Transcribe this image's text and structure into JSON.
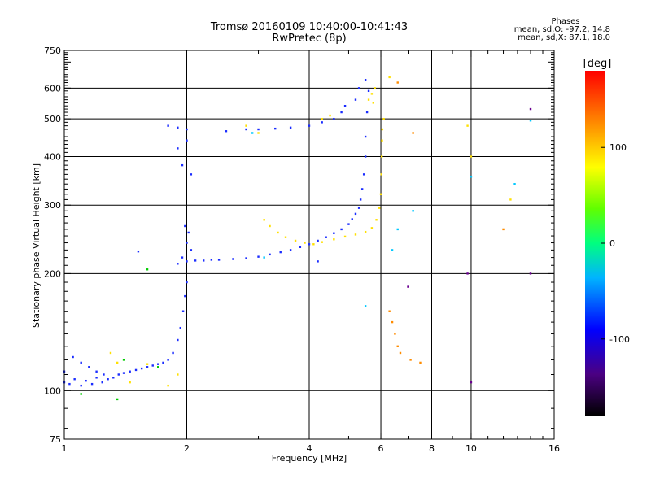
{
  "title": "Tromsø 20160109 10:40:00-10:41:43",
  "subtitle": "RwPretec (8p)",
  "phases_box": {
    "heading": "Phases",
    "line1": "mean, sd,O:  -97.2, 14.8",
    "line2": "mean, sd,X:   87.1, 18.0"
  },
  "colors": {
    "axis": "#000000",
    "grid": "#000000"
  },
  "chart_data": {
    "type": "scatter",
    "title": "Tromsø 20160109 10:40:00-10:41:43",
    "subtitle": "RwPretec (8p)",
    "xlabel": "Frequency [MHz]",
    "ylabel": "Stationary phase Virtual Height [km]",
    "x_scale": "log",
    "y_scale": "log",
    "xlim": [
      1,
      16
    ],
    "ylim": [
      75,
      750
    ],
    "x_ticks": [
      1,
      2,
      4,
      6,
      8,
      10,
      16
    ],
    "x_tick_labels": [
      "1",
      "2",
      "4",
      "6",
      "8",
      "10",
      "16"
    ],
    "y_ticks": [
      75,
      100,
      200,
      300,
      400,
      500,
      600,
      750
    ],
    "y_tick_labels": [
      "75",
      "100",
      "200",
      "300",
      "400",
      "500",
      "600",
      "750"
    ],
    "x_gridlines": [
      2,
      4,
      6,
      8,
      10
    ],
    "y_gridlines": [
      100,
      200,
      300,
      400,
      500,
      600
    ],
    "grid": true,
    "colorbar": {
      "label": "[deg]",
      "range": [
        -180,
        180
      ],
      "ticks": [
        100,
        0,
        -100
      ],
      "tick_labels": [
        "100",
        "0",
        "-100"
      ],
      "placement": "right"
    },
    "series": [
      {
        "phase_deg": -97,
        "color": "#1a2cff",
        "points": [
          [
            1.0,
            105
          ],
          [
            1.03,
            104
          ],
          [
            1.06,
            107
          ],
          [
            1.1,
            103
          ],
          [
            1.13,
            106
          ],
          [
            1.17,
            104
          ],
          [
            1.2,
            108
          ],
          [
            1.24,
            105
          ],
          [
            1.28,
            107
          ],
          [
            1.32,
            108
          ],
          [
            1.36,
            110
          ],
          [
            1.4,
            111
          ],
          [
            1.45,
            112
          ],
          [
            1.5,
            113
          ],
          [
            1.55,
            114
          ],
          [
            1.6,
            115
          ],
          [
            1.65,
            116
          ],
          [
            1.7,
            117
          ],
          [
            1.75,
            118
          ],
          [
            1.8,
            120
          ],
          [
            1.85,
            125
          ],
          [
            1.9,
            135
          ],
          [
            1.93,
            145
          ],
          [
            1.96,
            160
          ],
          [
            1.98,
            175
          ],
          [
            2.0,
            190
          ],
          [
            1.9,
            212
          ],
          [
            1.95,
            220
          ],
          [
            2.0,
            215
          ],
          [
            2.1,
            216
          ],
          [
            2.2,
            216
          ],
          [
            2.3,
            217
          ],
          [
            2.4,
            217
          ],
          [
            2.6,
            218
          ],
          [
            2.8,
            219
          ],
          [
            3.0,
            221
          ],
          [
            3.2,
            224
          ],
          [
            3.4,
            227
          ],
          [
            3.6,
            230
          ],
          [
            3.8,
            234
          ],
          [
            4.0,
            238
          ],
          [
            4.2,
            243
          ],
          [
            4.4,
            248
          ],
          [
            4.6,
            254
          ],
          [
            4.8,
            260
          ],
          [
            5.0,
            268
          ],
          [
            5.1,
            276
          ],
          [
            5.2,
            285
          ],
          [
            5.3,
            295
          ],
          [
            5.35,
            310
          ],
          [
            5.4,
            330
          ],
          [
            5.45,
            360
          ],
          [
            5.5,
            400
          ],
          [
            5.5,
            450
          ],
          [
            5.55,
            520
          ],
          [
            5.6,
            590
          ],
          [
            5.5,
            630
          ],
          [
            5.3,
            600
          ],
          [
            5.2,
            560
          ],
          [
            1.8,
            480
          ],
          [
            1.9,
            475
          ],
          [
            2.0,
            470
          ],
          [
            2.5,
            465
          ],
          [
            2.8,
            470
          ],
          [
            3.0,
            470
          ],
          [
            3.3,
            472
          ],
          [
            3.6,
            475
          ],
          [
            4.0,
            480
          ],
          [
            4.3,
            490
          ],
          [
            4.6,
            500
          ],
          [
            4.8,
            520
          ],
          [
            4.9,
            540
          ],
          [
            1.95,
            380
          ],
          [
            2.05,
            360
          ],
          [
            1.9,
            420
          ],
          [
            2.0,
            440
          ],
          [
            1.05,
            122
          ],
          [
            1.1,
            118
          ],
          [
            1.15,
            115
          ],
          [
            1.0,
            112
          ],
          [
            1.2,
            112
          ],
          [
            1.25,
            110
          ],
          [
            2.05,
            230
          ],
          [
            2.0,
            240
          ],
          [
            2.02,
            255
          ],
          [
            1.98,
            265
          ],
          [
            1.52,
            228
          ],
          [
            4.2,
            215
          ]
        ]
      },
      {
        "phase_deg": 90,
        "color": "#ffe000",
        "points": [
          [
            3.1,
            275
          ],
          [
            3.2,
            265
          ],
          [
            3.35,
            255
          ],
          [
            3.5,
            248
          ],
          [
            3.7,
            243
          ],
          [
            3.9,
            240
          ],
          [
            4.1,
            238
          ],
          [
            4.3,
            241
          ],
          [
            4.6,
            245
          ],
          [
            4.9,
            249
          ],
          [
            5.2,
            252
          ],
          [
            5.5,
            256
          ],
          [
            5.7,
            262
          ],
          [
            5.85,
            275
          ],
          [
            5.95,
            295
          ],
          [
            6.0,
            320
          ],
          [
            6.02,
            360
          ],
          [
            6.03,
            400
          ],
          [
            6.04,
            440
          ],
          [
            6.05,
            470
          ],
          [
            6.1,
            500
          ],
          [
            5.75,
            550
          ],
          [
            5.7,
            580
          ],
          [
            5.8,
            600
          ],
          [
            5.6,
            560
          ],
          [
            4.5,
            510
          ],
          [
            4.3,
            500
          ],
          [
            3.0,
            460
          ],
          [
            2.8,
            480
          ],
          [
            1.6,
            117
          ],
          [
            1.3,
            125
          ],
          [
            1.35,
            118
          ],
          [
            1.8,
            103
          ],
          [
            1.9,
            110
          ],
          [
            1.45,
            105
          ],
          [
            6.3,
            640
          ],
          [
            9.8,
            480
          ],
          [
            10.0,
            400
          ],
          [
            12.5,
            310
          ]
        ]
      },
      {
        "phase_deg": 30,
        "color": "#00cc00",
        "points": [
          [
            1.1,
            98
          ],
          [
            1.35,
            95
          ],
          [
            1.7,
            115
          ],
          [
            1.4,
            120
          ],
          [
            1.6,
            205
          ]
        ]
      },
      {
        "phase_deg": 150,
        "color": "#ff8c00",
        "points": [
          [
            6.3,
            160
          ],
          [
            6.4,
            150
          ],
          [
            6.5,
            140
          ],
          [
            6.6,
            130
          ],
          [
            6.7,
            125
          ],
          [
            7.1,
            120
          ],
          [
            7.5,
            118
          ],
          [
            6.6,
            620
          ],
          [
            7.2,
            460
          ],
          [
            12.0,
            260
          ]
        ]
      },
      {
        "phase_deg": -20,
        "color": "#00c8ff",
        "points": [
          [
            5.5,
            165
          ],
          [
            6.4,
            230
          ],
          [
            6.6,
            260
          ],
          [
            7.2,
            290
          ],
          [
            10.0,
            355
          ],
          [
            12.8,
            340
          ],
          [
            14.0,
            495
          ],
          [
            3.1,
            220
          ],
          [
            2.9,
            460
          ]
        ]
      },
      {
        "phase_deg": -150,
        "color": "#6a0090",
        "points": [
          [
            14.0,
            530
          ],
          [
            14.0,
            200
          ],
          [
            10.0,
            105
          ],
          [
            7.0,
            185
          ],
          [
            9.8,
            200
          ]
        ]
      }
    ]
  }
}
